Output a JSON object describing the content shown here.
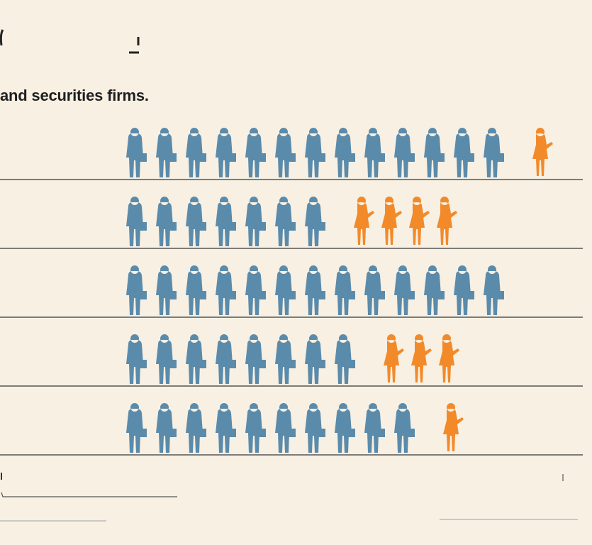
{
  "header": {
    "subtitle": "and securities firms."
  },
  "colors": {
    "male": "#5b8bab",
    "female": "#f28a2a",
    "rule": "#555555",
    "background": "#f7f0e3"
  },
  "icons": {
    "male": "businessman-icon",
    "female": "businesswoman-icon"
  },
  "chart_data": {
    "type": "pictogram",
    "categories": [
      "",
      "",
      "",
      "",
      ""
    ],
    "series": [
      {
        "values": [
          13,
          7,
          13,
          8,
          10
        ]
      },
      {
        "values": [
          1,
          4,
          0,
          3,
          1
        ]
      }
    ]
  }
}
